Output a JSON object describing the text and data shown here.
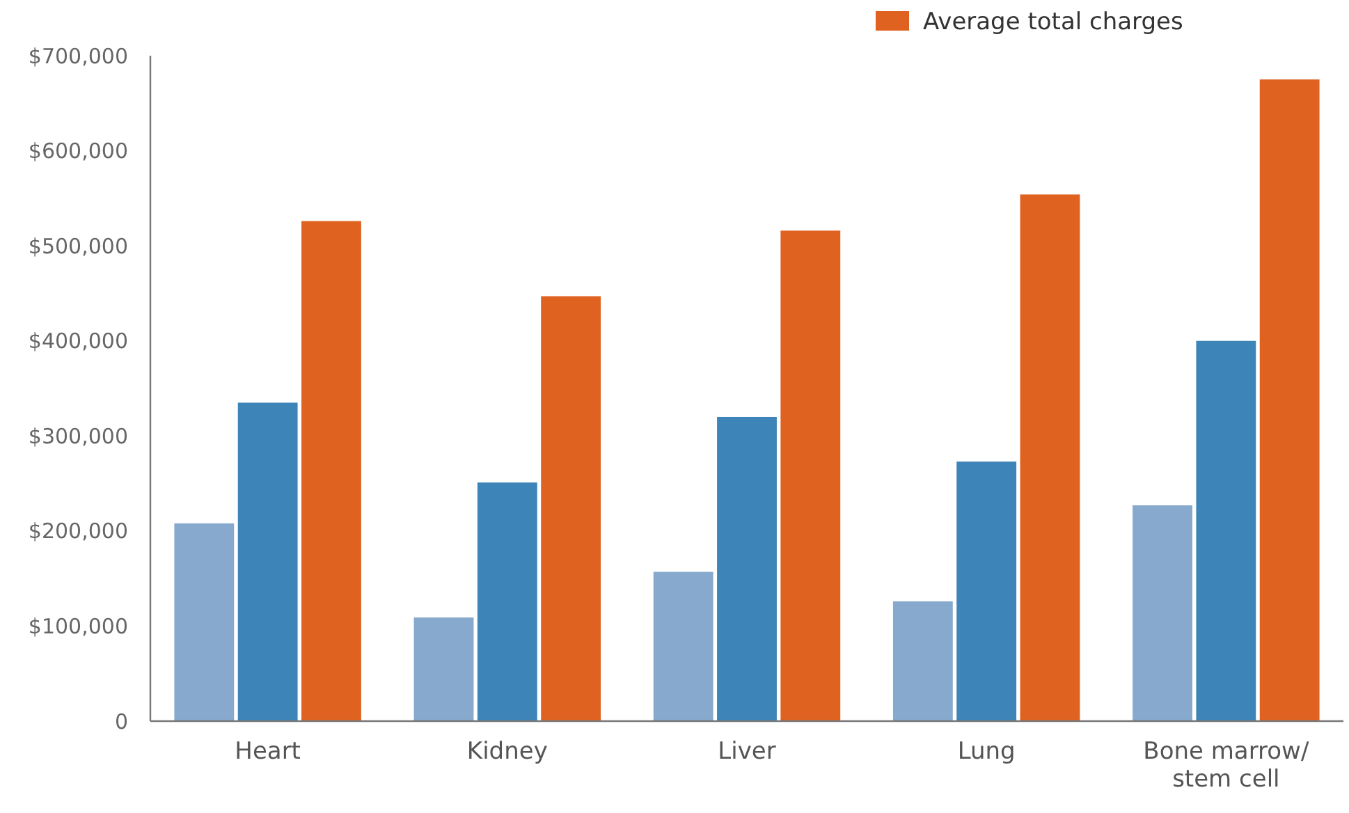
{
  "chart_data": {
    "type": "bar",
    "categories": [
      "Heart",
      "Kidney",
      "Liver",
      "Lung",
      "Bone marrow/ stem cell"
    ],
    "series": [
      {
        "color": "#86a9cd",
        "values": [
          208000,
          109000,
          157000,
          126000,
          227000
        ]
      },
      {
        "color": "#3d84b8",
        "values": [
          335000,
          251000,
          320000,
          273000,
          400000
        ]
      },
      {
        "name": "Average total charges",
        "color": "#df6220",
        "values": [
          526000,
          447000,
          516000,
          554000,
          675000
        ]
      }
    ],
    "ylim": [
      0,
      700000
    ],
    "yticks": [
      {
        "value": 0,
        "label": "0"
      },
      {
        "value": 100000,
        "label": "$100,000"
      },
      {
        "value": 200000,
        "label": "$200,000"
      },
      {
        "value": 300000,
        "label": "$300,000"
      },
      {
        "value": 400000,
        "label": "$400,000"
      },
      {
        "value": 500000,
        "label": "$500,000"
      },
      {
        "value": 600000,
        "label": "$600,000"
      },
      {
        "value": 700000,
        "label": "$700,000"
      }
    ],
    "grid": false,
    "legend": "top right"
  }
}
